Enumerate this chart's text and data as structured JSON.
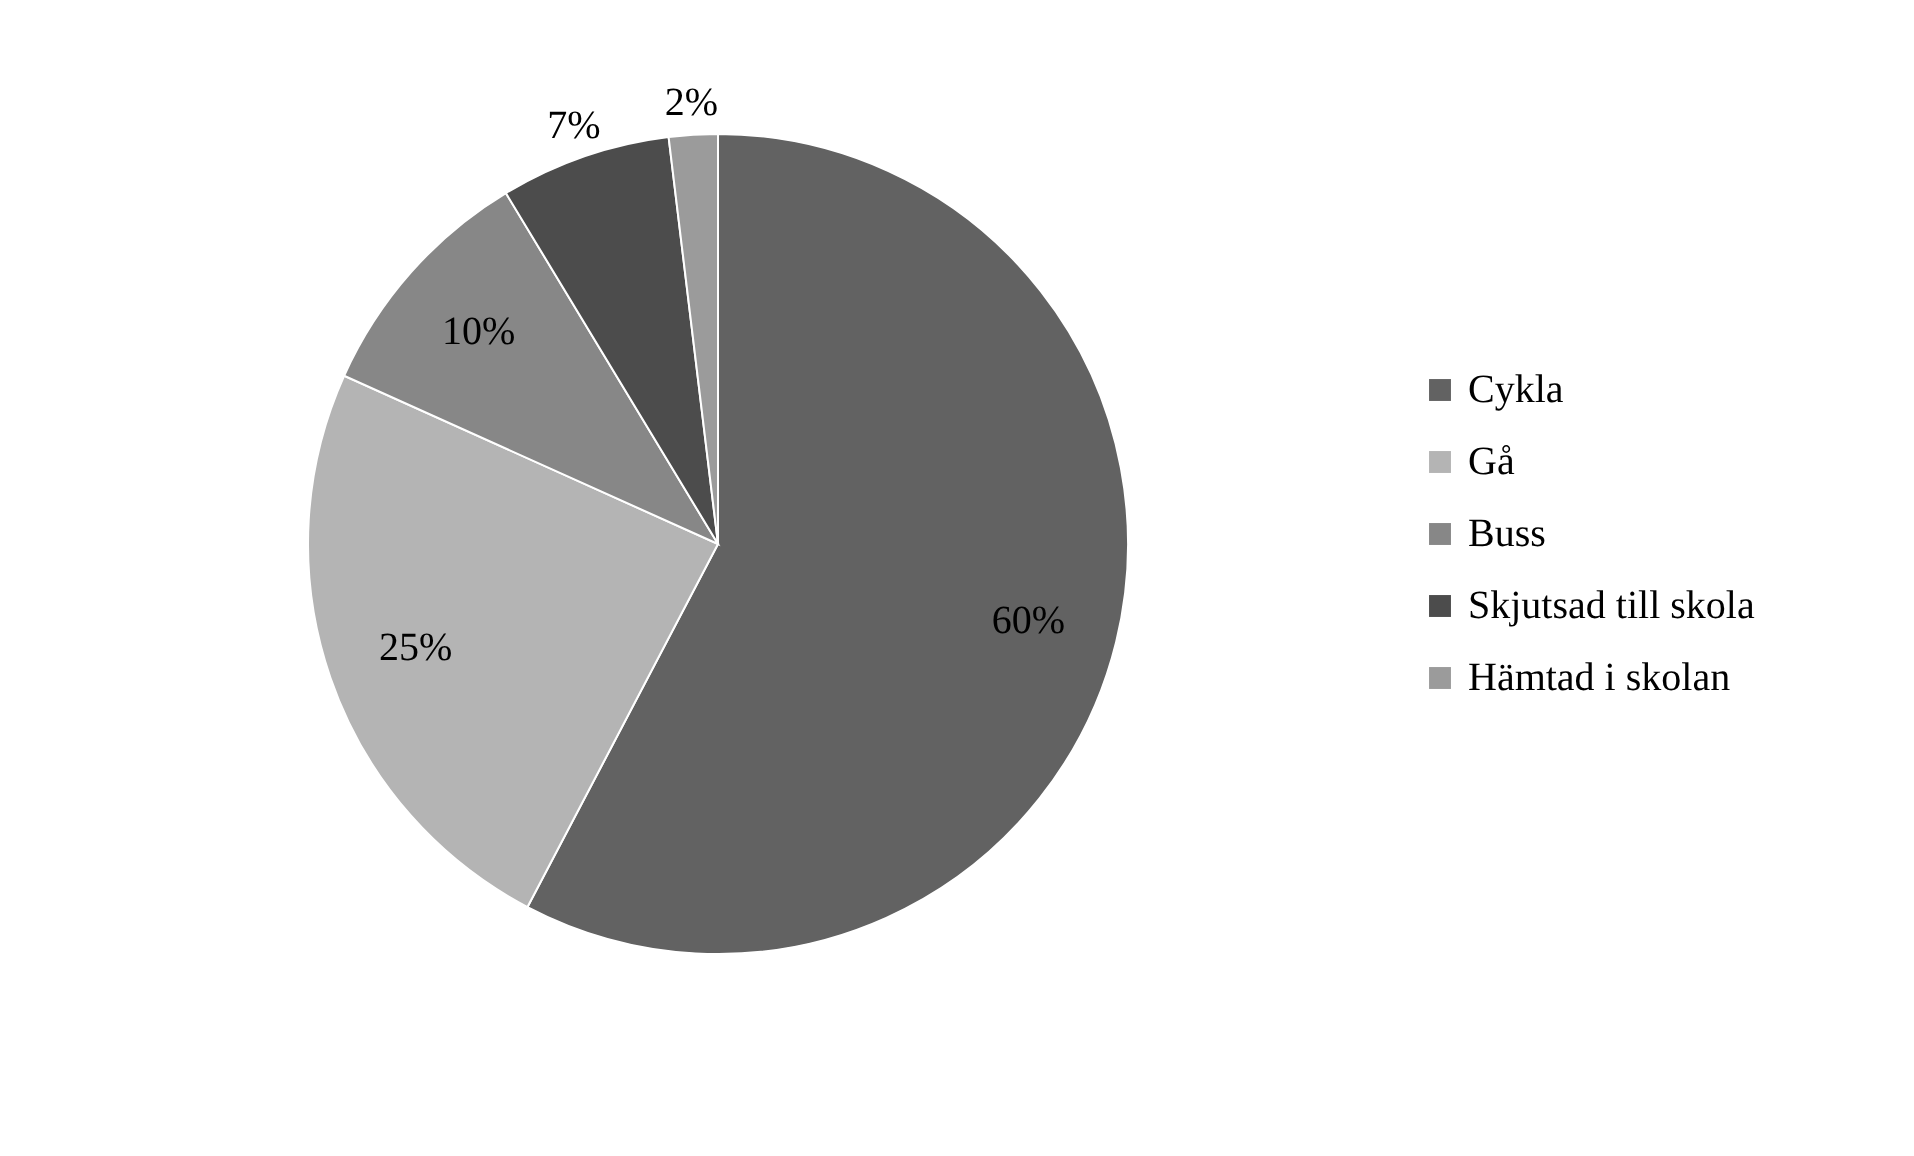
{
  "chart_data": {
    "type": "pie",
    "categories": [
      "Cykla",
      "Gå",
      "Buss",
      "Skjutsad till skola",
      "Hämtad i skolan"
    ],
    "values": [
      60,
      25,
      10,
      7,
      2
    ],
    "colors": [
      "#626262",
      "#b4b4b4",
      "#878787",
      "#4c4c4c",
      "#9b9b9b"
    ],
    "value_labels": [
      "60%",
      "25%",
      "10%",
      "7%",
      "2%"
    ],
    "legend": "right"
  }
}
